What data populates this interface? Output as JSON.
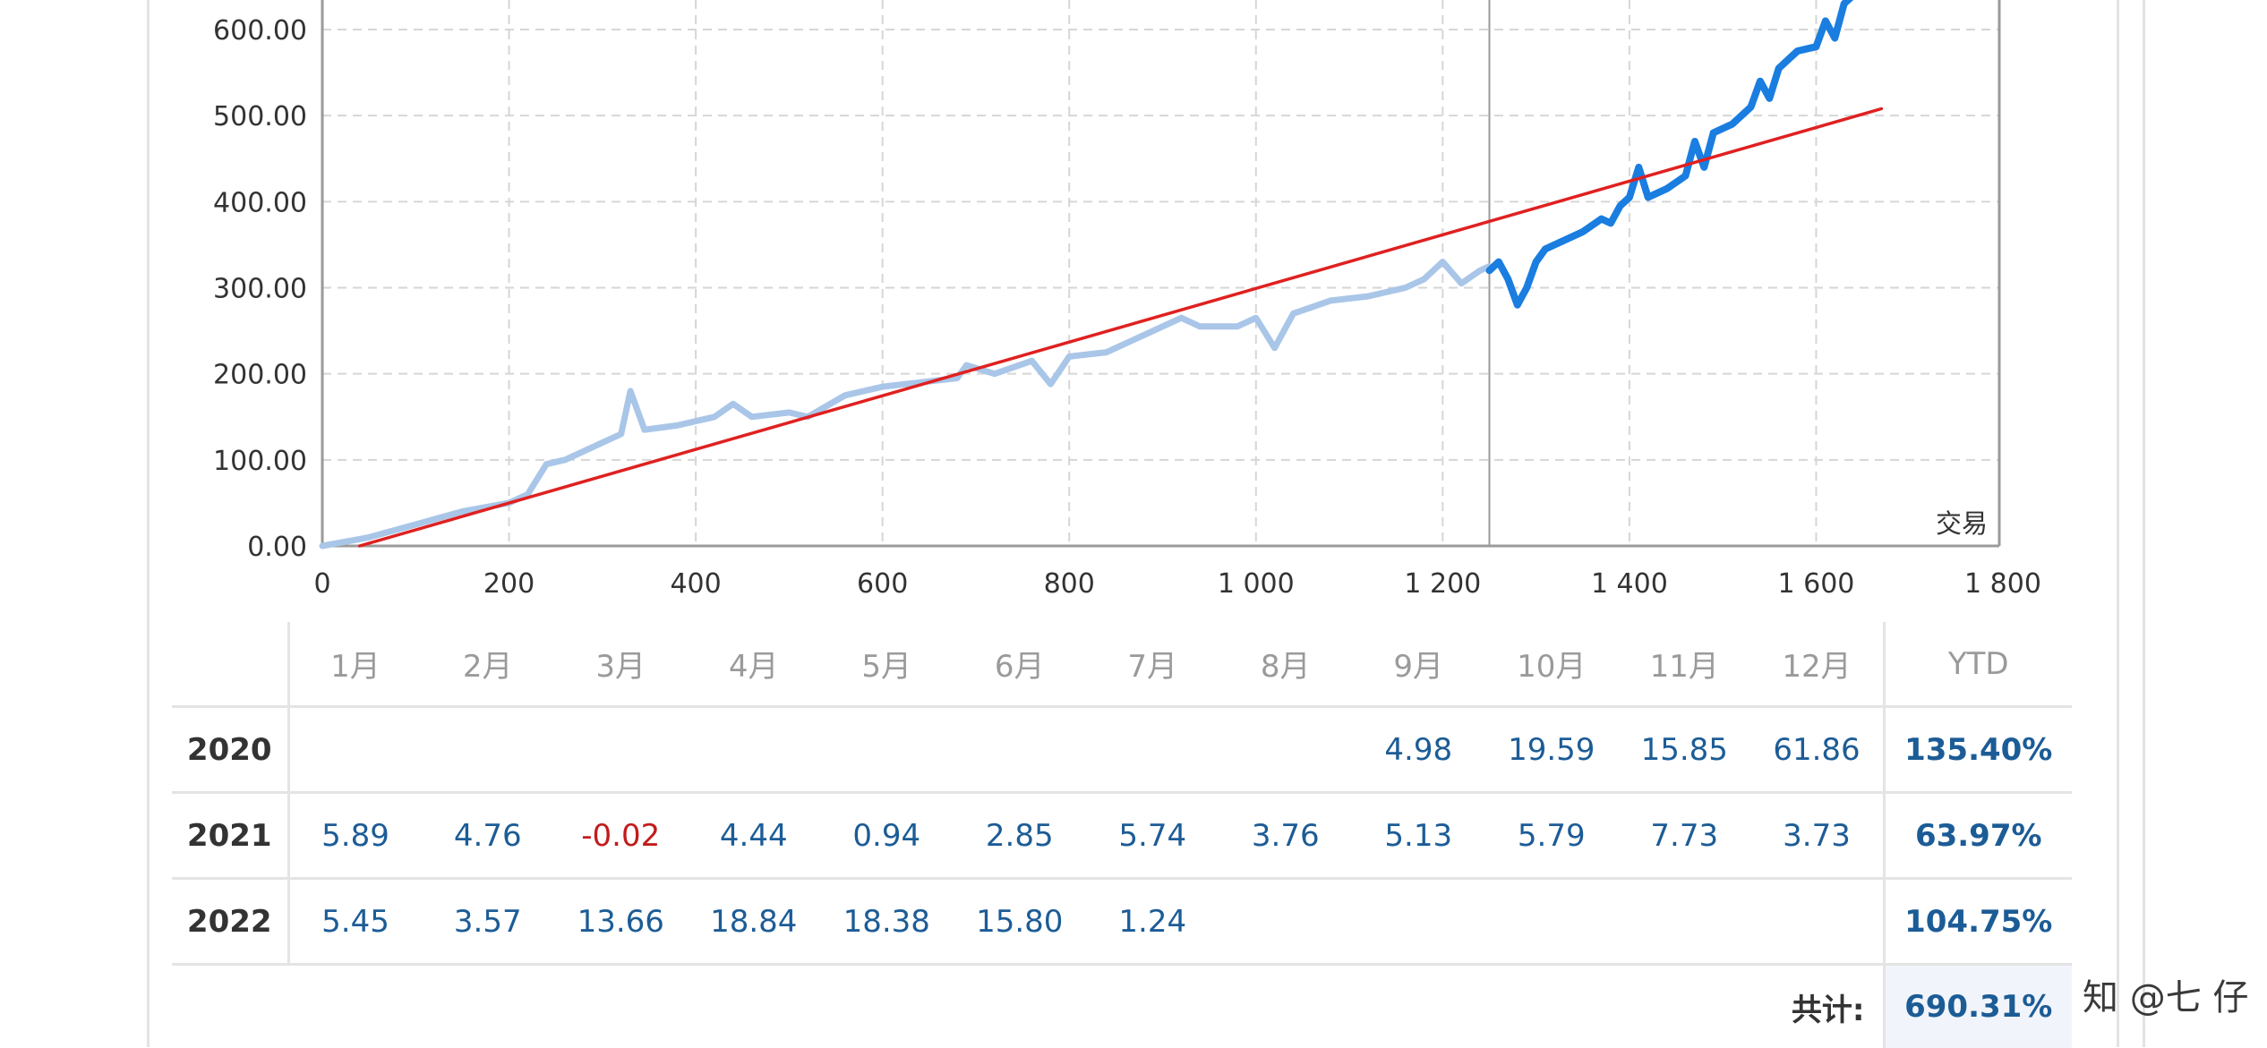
{
  "chart_data": {
    "type": "line",
    "xlabel": "交易",
    "ylabel": "",
    "xlim": [
      0,
      1800
    ],
    "ylim": [
      0,
      600
    ],
    "x_ticks": [
      "0",
      "200",
      "400",
      "600",
      "800",
      "1 000",
      "1 200",
      "1 400",
      "1 600",
      "1 800"
    ],
    "y_ticks": [
      "0.00",
      "100.00",
      "200.00",
      "300.00",
      "400.00",
      "500.00",
      "600.00"
    ],
    "grid": true,
    "vertical_marker_x": 1250,
    "series": [
      {
        "color": "#a9c6e8",
        "x": [
          0,
          50,
          100,
          150,
          200,
          220,
          240,
          260,
          300,
          320,
          330,
          345,
          380,
          420,
          440,
          460,
          500,
          520,
          560,
          600,
          640,
          680,
          690,
          720,
          760,
          780,
          800,
          840,
          880,
          920,
          940,
          980,
          1000,
          1020,
          1040,
          1080,
          1120,
          1160,
          1180,
          1200,
          1220,
          1240,
          1250
        ],
        "y": [
          0,
          10,
          25,
          40,
          50,
          60,
          95,
          100,
          120,
          130,
          180,
          135,
          140,
          150,
          165,
          150,
          155,
          150,
          175,
          185,
          190,
          195,
          210,
          200,
          215,
          188,
          220,
          225,
          245,
          265,
          255,
          255,
          265,
          230,
          270,
          285,
          290,
          300,
          310,
          330,
          305,
          320,
          325
        ]
      },
      {
        "color": "#1a7de0",
        "x": [
          1250,
          1260,
          1270,
          1280,
          1290,
          1300,
          1310,
          1330,
          1350,
          1370,
          1380,
          1390,
          1400,
          1410,
          1420,
          1440,
          1460,
          1470,
          1480,
          1490,
          1510,
          1530,
          1540,
          1550,
          1560,
          1580,
          1600,
          1610,
          1620,
          1630,
          1640
        ],
        "y": [
          320,
          330,
          310,
          280,
          300,
          330,
          345,
          355,
          365,
          380,
          375,
          395,
          405,
          440,
          405,
          415,
          430,
          470,
          440,
          480,
          490,
          510,
          540,
          520,
          555,
          575,
          580,
          610,
          590,
          630,
          640
        ]
      },
      {
        "color": "#e02020",
        "x": [
          40,
          1670
        ],
        "y": [
          0,
          508
        ]
      }
    ]
  },
  "table": {
    "months": [
      "1月",
      "2月",
      "3月",
      "4月",
      "5月",
      "6月",
      "7月",
      "8月",
      "9月",
      "10月",
      "11月",
      "12月"
    ],
    "ytd_header": "YTD",
    "rows": [
      {
        "year": "2020",
        "values": [
          "",
          "",
          "",
          "",
          "",
          "",
          "",
          "",
          "4.98",
          "19.59",
          "15.85",
          "61.86"
        ],
        "ytd": "135.40%"
      },
      {
        "year": "2021",
        "values": [
          "5.89",
          "4.76",
          "-0.02",
          "4.44",
          "0.94",
          "2.85",
          "5.74",
          "3.76",
          "5.13",
          "5.79",
          "7.73",
          "3.73"
        ],
        "ytd": "63.97%"
      },
      {
        "year": "2022",
        "values": [
          "5.45",
          "3.57",
          "13.66",
          "18.84",
          "18.38",
          "15.80",
          "1.24",
          "",
          "",
          "",
          "",
          ""
        ],
        "ytd": "104.75%"
      }
    ],
    "total_label": "共计:",
    "total_value": "690.31%",
    "negative_color": "#c21b1b",
    "positive_color": "#1c5c96"
  },
  "watermark": "知 @七 仔"
}
